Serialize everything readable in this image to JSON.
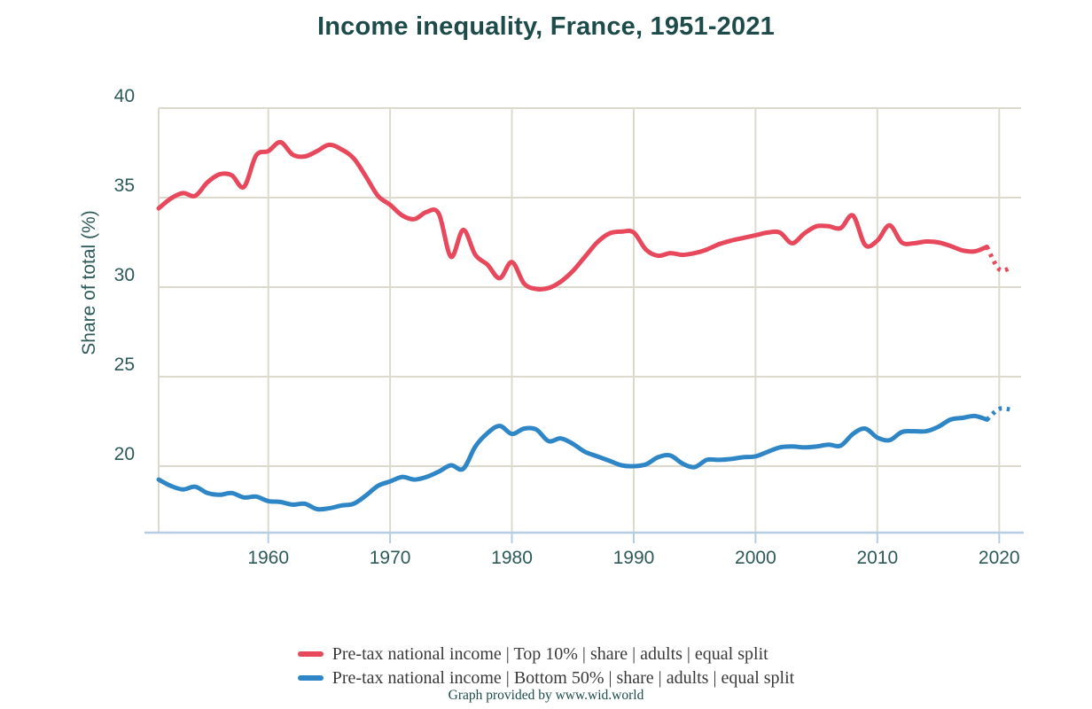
{
  "footer": "Graph provided by www.wid.world",
  "chart_data": {
    "type": "line",
    "title": "Income inequality, France, 1951-2021",
    "ylabel": "Share of total (%)",
    "xlabel": "",
    "yticks": [
      40,
      35,
      30,
      25,
      20
    ],
    "xticks": [
      1960,
      1970,
      1980,
      1990,
      2000,
      2010,
      2020
    ],
    "ylim": [
      16.3,
      40
    ],
    "xlim": [
      1951,
      2021.8
    ],
    "grid": "on",
    "legend_position": "bottom-center",
    "colors": {
      "grid": "#dcdacd",
      "axis_line": "#b5cde2",
      "title_text": "#1d4b4a",
      "tick_text": "#2d5a58",
      "legend_text": "#3a3a3a"
    },
    "years": [
      1951,
      1952,
      1953,
      1954,
      1955,
      1956,
      1957,
      1958,
      1959,
      1960,
      1961,
      1962,
      1963,
      1964,
      1965,
      1966,
      1967,
      1968,
      1969,
      1970,
      1971,
      1972,
      1973,
      1974,
      1975,
      1976,
      1977,
      1978,
      1979,
      1980,
      1981,
      1982,
      1983,
      1984,
      1985,
      1986,
      1987,
      1988,
      1989,
      1990,
      1991,
      1992,
      1993,
      1994,
      1995,
      1996,
      1997,
      1998,
      1999,
      2000,
      2001,
      2002,
      2003,
      2004,
      2005,
      2006,
      2007,
      2008,
      2009,
      2010,
      2011,
      2012,
      2013,
      2014,
      2015,
      2016,
      2017,
      2018,
      2019,
      2020,
      2021
    ],
    "series": [
      {
        "id": "top10",
        "name": "Pre-tax national income | Top 10% | share | adults | equal split",
        "color": "#e8485c",
        "dashed_from": 2019,
        "values": [
          34.4,
          34.95,
          35.25,
          35.1,
          35.85,
          36.3,
          36.25,
          35.6,
          37.35,
          37.6,
          38.1,
          37.4,
          37.3,
          37.6,
          37.95,
          37.7,
          37.2,
          36.2,
          35.1,
          34.6,
          34.0,
          33.8,
          34.2,
          34.1,
          31.7,
          33.2,
          31.8,
          31.25,
          30.5,
          31.4,
          30.2,
          29.9,
          29.95,
          30.3,
          30.9,
          31.7,
          32.5,
          33.0,
          33.1,
          33.05,
          32.1,
          31.75,
          31.9,
          31.8,
          31.9,
          32.1,
          32.4,
          32.6,
          32.75,
          32.9,
          33.05,
          33.05,
          32.45,
          33.0,
          33.4,
          33.4,
          33.3,
          34.0,
          32.35,
          32.6,
          33.45,
          32.5,
          32.45,
          32.55,
          32.5,
          32.3,
          32.05,
          32.0,
          32.25,
          31.0,
          31.1
        ]
      },
      {
        "id": "bottom50",
        "name": "Pre-tax national income | Bottom 50% | share | adults | equal split",
        "color": "#2e86c6",
        "dashed_from": 2019,
        "values": [
          19.25,
          18.9,
          18.7,
          18.85,
          18.5,
          18.4,
          18.5,
          18.25,
          18.3,
          18.05,
          18.0,
          17.85,
          17.9,
          17.6,
          17.65,
          17.8,
          17.9,
          18.35,
          18.9,
          19.15,
          19.4,
          19.25,
          19.4,
          19.7,
          20.05,
          19.85,
          21.1,
          21.85,
          22.25,
          21.8,
          22.1,
          22.05,
          21.4,
          21.55,
          21.25,
          20.8,
          20.55,
          20.3,
          20.05,
          20.0,
          20.1,
          20.5,
          20.6,
          20.15,
          19.95,
          20.35,
          20.35,
          20.4,
          20.5,
          20.55,
          20.8,
          21.05,
          21.1,
          21.05,
          21.1,
          21.2,
          21.15,
          21.8,
          22.1,
          21.6,
          21.45,
          21.9,
          21.95,
          21.95,
          22.2,
          22.6,
          22.7,
          22.8,
          22.6,
          23.2,
          23.15
        ]
      }
    ]
  }
}
